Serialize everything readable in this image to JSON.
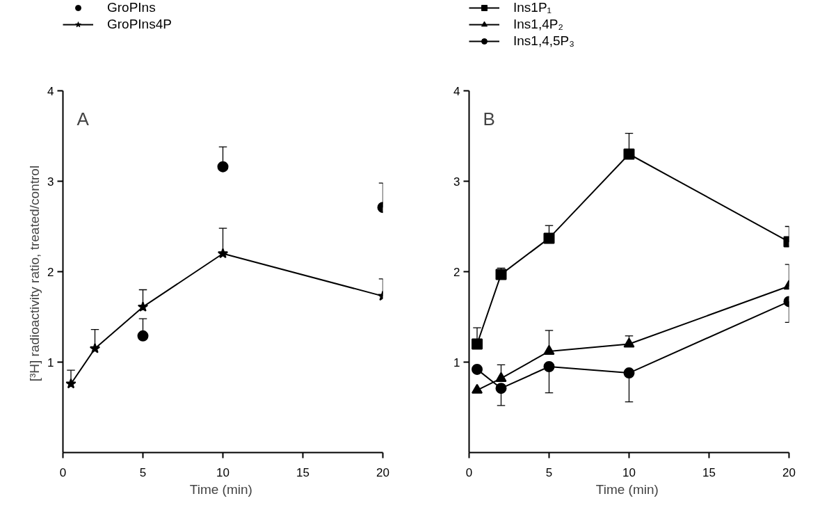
{
  "chart_data": [
    {
      "type": "line",
      "annotations": [
        "A"
      ],
      "xlabel": "Time  (min)",
      "ylabel": "[³H]  radioactivity ratio, treated/control",
      "xlim": [
        0,
        20
      ],
      "xticks": [
        0,
        5,
        10,
        15,
        20
      ],
      "ylim": [
        0,
        4
      ],
      "yticks": [
        1,
        2,
        3,
        4
      ],
      "grid": false,
      "legend": "top",
      "series": [
        {
          "name": "GroPIns",
          "type": "scatter",
          "marker": "circle",
          "color": "#000000",
          "x": [
            5,
            10,
            20
          ],
          "values": [
            1.29,
            3.16,
            2.71
          ],
          "errors": [
            [
              1.29,
              1.48
            ],
            [
              3.16,
              3.38
            ],
            [
              2.71,
              2.98
            ]
          ]
        },
        {
          "name": "GroPIns4P",
          "type": "line",
          "marker": "star",
          "color": "#000000",
          "x": [
            0.5,
            2,
            5,
            10,
            20
          ],
          "values": [
            0.76,
            1.15,
            1.61,
            2.2,
            1.73
          ],
          "errors": [
            [
              0.76,
              0.91
            ],
            [
              1.15,
              1.36
            ],
            [
              1.61,
              1.8
            ],
            [
              2.2,
              2.48
            ],
            [
              1.73,
              1.92
            ]
          ]
        }
      ]
    },
    {
      "type": "line",
      "annotations": [
        "B"
      ],
      "xlabel": "Time  (min)",
      "xlim": [
        0,
        20
      ],
      "xticks": [
        0,
        5,
        10,
        15,
        20
      ],
      "ylim": [
        0,
        4
      ],
      "yticks": [
        1,
        2,
        3,
        4
      ],
      "grid": false,
      "legend": "top",
      "series": [
        {
          "name": "Ins1P₁",
          "marker": "square",
          "color": "#000000",
          "x": [
            0.5,
            2,
            5,
            10,
            20
          ],
          "values": [
            1.2,
            1.97,
            2.37,
            3.3,
            2.33
          ],
          "errors": [
            [
              1.2,
              1.38
            ],
            [
              1.97,
              2.04
            ],
            [
              2.37,
              2.51
            ],
            [
              3.3,
              3.53
            ],
            [
              2.33,
              2.5
            ]
          ]
        },
        {
          "name": "Ins1,4P₂",
          "marker": "triangle",
          "color": "#000000",
          "x": [
            0.5,
            2,
            5,
            10,
            20
          ],
          "values": [
            0.69,
            0.82,
            1.12,
            1.2,
            1.84
          ],
          "errors": [
            null,
            [
              0.82,
              0.97
            ],
            [
              1.12,
              1.35
            ],
            [
              1.2,
              1.29
            ],
            [
              1.84,
              2.08
            ]
          ]
        },
        {
          "name": "Ins1,4,5P₃",
          "marker": "circle",
          "color": "#000000",
          "x": [
            0.5,
            2,
            5,
            10,
            20
          ],
          "values": [
            0.92,
            0.71,
            0.95,
            0.88,
            1.67
          ],
          "errors": [
            null,
            [
              0.52,
              0.71
            ],
            [
              0.66,
              0.95
            ],
            [
              0.56,
              0.88
            ],
            [
              1.44,
              1.67
            ]
          ]
        }
      ]
    }
  ]
}
